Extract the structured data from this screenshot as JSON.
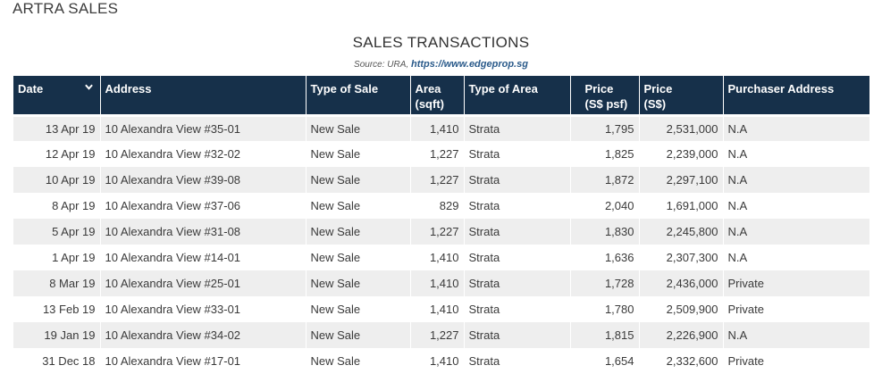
{
  "page": {
    "heading": "ARTRA SALES"
  },
  "table_title": "SALES TRANSACTIONS",
  "source": {
    "prefix": "Source: URA, ",
    "link": "https://www.edgeprop.sg"
  },
  "columns": {
    "date": "Date",
    "address": "Address",
    "type_of_sale": "Type of Sale",
    "area_line1": "Area",
    "area_line2": "(sqft)",
    "type_of_area": "Type of Area",
    "price_psf_line1": "Price",
    "price_psf_line2": "(S$ psf)",
    "price_line1": "Price",
    "price_line2": "(S$)",
    "purchaser": "Purchaser Address"
  },
  "sort_icon": "chevron-down-icon",
  "rows": [
    [
      "13 Apr 19",
      "10 Alexandra View #35-01",
      "New Sale",
      "1,410",
      "Strata",
      "1,795",
      "2,531,000",
      "N.A"
    ],
    [
      "12 Apr 19",
      "10 Alexandra View #32-02",
      "New Sale",
      "1,227",
      "Strata",
      "1,825",
      "2,239,000",
      "N.A"
    ],
    [
      "10 Apr 19",
      "10 Alexandra View #39-08",
      "New Sale",
      "1,227",
      "Strata",
      "1,872",
      "2,297,100",
      "N.A"
    ],
    [
      "8 Apr 19",
      "10 Alexandra View #37-06",
      "New Sale",
      "829",
      "Strata",
      "2,040",
      "1,691,000",
      "N.A"
    ],
    [
      "5 Apr 19",
      "10 Alexandra View #31-08",
      "New Sale",
      "1,227",
      "Strata",
      "1,830",
      "2,245,800",
      "N.A"
    ],
    [
      "1 Apr 19",
      "10 Alexandra View #14-01",
      "New Sale",
      "1,410",
      "Strata",
      "1,636",
      "2,307,300",
      "N.A"
    ],
    [
      "8 Mar 19",
      "10 Alexandra View #25-01",
      "New Sale",
      "1,410",
      "Strata",
      "1,728",
      "2,436,000",
      "Private"
    ],
    [
      "13 Feb 19",
      "10 Alexandra View #33-01",
      "New Sale",
      "1,410",
      "Strata",
      "1,780",
      "2,509,900",
      "Private"
    ],
    [
      "19 Jan 19",
      "10 Alexandra View #34-02",
      "New Sale",
      "1,227",
      "Strata",
      "1,815",
      "2,226,900",
      "N.A"
    ],
    [
      "31 Dec 18",
      "10 Alexandra View #17-01",
      "New Sale",
      "1,410",
      "Strata",
      "1,654",
      "2,332,600",
      "Private"
    ]
  ],
  "colors": {
    "header_bg": "#16304a",
    "stripe": "#eeeeee",
    "link": "#2a5a8a"
  }
}
